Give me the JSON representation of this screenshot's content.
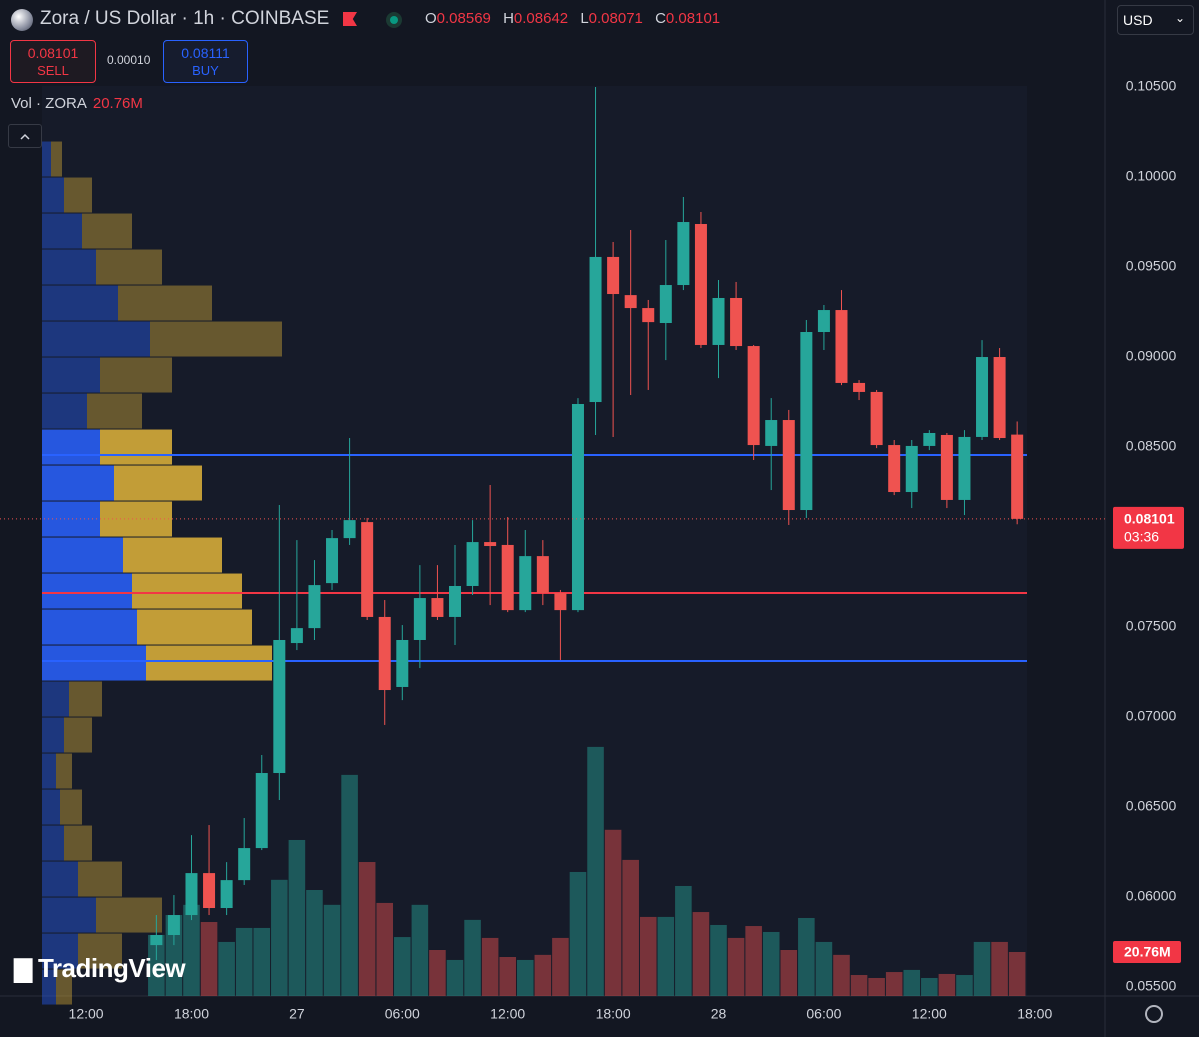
{
  "chart_data": {
    "type": "candlestick",
    "title": "Zora / US Dollar · 1h · COINBASE",
    "x": [
      4,
      5,
      6,
      7,
      8,
      9,
      10,
      11,
      12,
      13,
      14,
      15,
      16,
      17,
      18,
      19,
      20,
      21,
      22,
      23,
      24,
      25,
      26,
      27,
      28,
      29,
      30,
      31,
      32,
      33,
      34,
      35,
      36,
      37,
      38,
      39,
      40,
      41,
      42,
      43,
      44,
      45,
      46,
      47,
      48,
      49,
      50,
      51,
      52,
      53
    ],
    "open": [
      0.05733,
      0.05789,
      0.059,
      0.06133,
      0.05939,
      0.06094,
      0.06272,
      0.06689,
      0.07411,
      0.07494,
      0.07744,
      0.07994,
      0.08083,
      0.07556,
      0.07167,
      0.07428,
      0.07661,
      0.07556,
      0.07728,
      0.07972,
      0.07956,
      0.07594,
      0.07894,
      0.07689,
      0.07594,
      0.0875,
      0.09556,
      0.09344,
      0.09272,
      0.09189,
      0.094,
      0.09739,
      0.09067,
      0.09328,
      0.09061,
      0.08506,
      0.0865,
      0.0815,
      0.09139,
      0.09261,
      0.08856,
      0.08806,
      0.08511,
      0.0825,
      0.08506,
      0.08567,
      0.08206,
      0.08556,
      0.09,
      0.08569
    ],
    "high": [
      0.059,
      0.06011,
      0.06344,
      0.064,
      0.06194,
      0.06439,
      0.06789,
      0.08178,
      0.07983,
      0.07872,
      0.08039,
      0.0855,
      0.08106,
      0.0765,
      0.07511,
      0.07844,
      0.07844,
      0.07956,
      0.08094,
      0.08289,
      0.08111,
      0.08039,
      0.07983,
      0.07706,
      0.08772,
      0.105,
      0.09639,
      0.09706,
      0.09317,
      0.0965,
      0.09889,
      0.09806,
      0.09428,
      0.09417,
      0.09067,
      0.08772,
      0.08706,
      0.09206,
      0.09289,
      0.09372,
      0.08872,
      0.08817,
      0.08539,
      0.08539,
      0.08594,
      0.08578,
      0.08594,
      0.09094,
      0.0905,
      0.08642
    ],
    "low": [
      0.0565,
      0.05733,
      0.05872,
      0.059,
      0.059,
      0.06067,
      0.06261,
      0.06539,
      0.07372,
      0.07428,
      0.07706,
      0.07956,
      0.07539,
      0.06956,
      0.07094,
      0.07272,
      0.07539,
      0.074,
      0.07678,
      0.07622,
      0.07583,
      0.07583,
      0.07622,
      0.07317,
      0.07583,
      0.08567,
      0.08556,
      0.08789,
      0.08817,
      0.08983,
      0.09372,
      0.0905,
      0.08883,
      0.09039,
      0.08428,
      0.08261,
      0.08067,
      0.08106,
      0.09039,
      0.08844,
      0.08761,
      0.08494,
      0.08233,
      0.08161,
      0.08483,
      0.08161,
      0.08122,
      0.08539,
      0.08539,
      0.08071
    ],
    "close": [
      0.05789,
      0.059,
      0.06133,
      0.05939,
      0.06094,
      0.06272,
      0.06689,
      0.07428,
      0.07494,
      0.07733,
      0.07994,
      0.08094,
      0.07556,
      0.0715,
      0.07428,
      0.07661,
      0.07556,
      0.07728,
      0.07972,
      0.0795,
      0.07594,
      0.07894,
      0.07689,
      0.07594,
      0.08739,
      0.09556,
      0.0935,
      0.09272,
      0.09194,
      0.094,
      0.0975,
      0.09067,
      0.09328,
      0.09061,
      0.08511,
      0.0865,
      0.0815,
      0.09139,
      0.09261,
      0.08856,
      0.08806,
      0.08511,
      0.0825,
      0.08506,
      0.08578,
      0.08206,
      0.08556,
      0.09,
      0.0855,
      0.08101
    ],
    "up_color": "#26a69a",
    "down_color": "#ef5350",
    "xlim": [
      -4.9,
      58
    ],
    "xticks": [
      {
        "value": 0,
        "label": "12:00"
      },
      {
        "value": 6,
        "label": "18:00"
      },
      {
        "value": 12,
        "label": "27"
      },
      {
        "value": 18,
        "label": "06:00"
      },
      {
        "value": 24,
        "label": "12:00"
      },
      {
        "value": 30,
        "label": "18:00"
      },
      {
        "value": 36,
        "label": "28"
      },
      {
        "value": 42,
        "label": "06:00"
      },
      {
        "value": 48,
        "label": "12:00"
      },
      {
        "value": 54,
        "label": "18:00"
      }
    ],
    "ylim": [
      0.05428,
      0.10539
    ],
    "yticks": [
      {
        "value": 0.105,
        "label": "0.10500"
      },
      {
        "value": 0.1,
        "label": "0.10000"
      },
      {
        "value": 0.095,
        "label": "0.09500"
      },
      {
        "value": 0.09,
        "label": "0.09000"
      },
      {
        "value": 0.085,
        "label": "0.08500"
      },
      {
        "value": 0.08,
        "label": "0.08000"
      },
      {
        "value": 0.075,
        "label": "0.07500"
      },
      {
        "value": 0.07,
        "label": "0.07000"
      },
      {
        "value": 0.065,
        "label": "0.06500"
      },
      {
        "value": 0.06,
        "label": "0.06000"
      },
      {
        "value": 0.055,
        "label": "0.05500"
      }
    ],
    "grid": false,
    "last_price_time": "03:36",
    "volume": {
      "values": [
        28.8,
        38.2,
        43.0,
        34.9,
        25.5,
        32.1,
        32.1,
        54.8,
        73.6,
        50.0,
        43.0,
        104.3,
        63.2,
        43.9,
        27.8,
        43.0,
        21.7,
        17.0,
        35.9,
        27.4,
        18.4,
        17.0,
        19.4,
        27.4,
        58.5,
        117.5,
        78.4,
        64.2,
        37.3,
        37.3,
        51.9,
        39.6,
        33.5,
        27.4,
        33.0,
        30.2,
        21.7,
        36.8,
        25.5,
        19.4,
        9.9,
        8.5,
        11.3,
        12.3,
        8.5,
        10.4,
        9.9,
        25.5,
        25.5,
        20.76
      ],
      "last_label": "20.76M",
      "vlim": [
        0,
        200
      ]
    },
    "levels": [
      {
        "value": 0.08456,
        "color": "#2962ff"
      },
      {
        "value": 0.07311,
        "color": "#2962ff"
      },
      {
        "value": 0.07689,
        "color": "#f23645"
      }
    ],
    "profile": {
      "bins": [
        0.054,
        0.056,
        0.058,
        0.06,
        0.062,
        0.064,
        0.066,
        0.068,
        0.07,
        0.072,
        0.074,
        0.076,
        0.078,
        0.08,
        0.082,
        0.084,
        0.086,
        0.088,
        0.09,
        0.092,
        0.094,
        0.096,
        0.098,
        0.1,
        0.102
      ],
      "up": [
        14,
        36,
        54,
        36,
        22,
        18,
        14,
        22,
        27,
        104,
        95,
        90,
        81,
        58,
        72,
        58,
        45,
        58,
        108,
        76,
        54,
        40,
        22,
        9
      ],
      "down": [
        16,
        44,
        66,
        44,
        28,
        22,
        16,
        28,
        33,
        126,
        115,
        110,
        99,
        72,
        88,
        72,
        55,
        72,
        132,
        94,
        66,
        50,
        28,
        11
      ],
      "up_color": "#2962ff",
      "down_color": "#e0b43a"
    }
  },
  "header": {
    "ohlc_keys": [
      "O",
      "H",
      "L",
      "C"
    ],
    "sell": {
      "price": "0.08101",
      "label": "SELL"
    },
    "spread": "0.00010",
    "buy": {
      "price": "0.08111",
      "label": "BUY"
    },
    "volume_title": "Vol · ZORA",
    "currency": "USD",
    "watermark": "TradingView"
  }
}
